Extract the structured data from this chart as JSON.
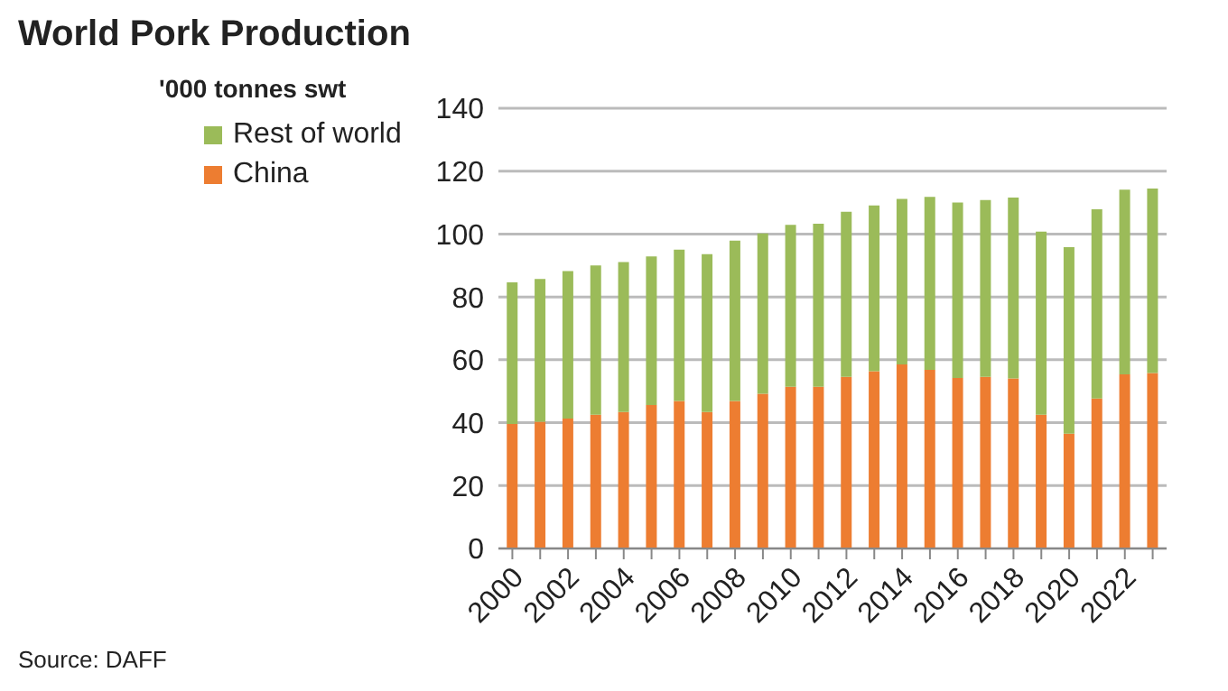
{
  "chart_data": {
    "type": "bar",
    "title": "World Pork Production",
    "ylabel": "'000 tonnes swt",
    "stacked": true,
    "categories": [
      "2000",
      null,
      "2002",
      null,
      "2004",
      null,
      "2006",
      null,
      "2008",
      null,
      "2010",
      null,
      "2012",
      null,
      "2014",
      null,
      "2016",
      null,
      "2018",
      null,
      "2020",
      null,
      "2022",
      null
    ],
    "series": [
      {
        "name": "China",
        "color": "#ed7d31",
        "values": [
          39.6,
          40.3,
          41.3,
          42.5,
          43.4,
          45.6,
          46.9,
          43.4,
          46.9,
          49.2,
          51.4,
          51.4,
          54.6,
          56.4,
          58.5,
          56.8,
          54.2,
          54.6,
          54.1,
          42.5,
          36.5,
          47.7,
          55.4,
          55.8
        ]
      },
      {
        "name": "Rest of world",
        "color": "#9bbb59",
        "values": [
          45.0,
          45.4,
          46.9,
          47.5,
          47.7,
          47.3,
          48.1,
          50.2,
          51.0,
          51.0,
          51.5,
          51.9,
          52.5,
          52.7,
          52.7,
          55.0,
          55.8,
          56.2,
          57.5,
          58.3,
          59.3,
          60.2,
          58.7,
          58.7
        ]
      }
    ],
    "ylim": [
      0,
      140
    ],
    "yticks": [
      0,
      20,
      40,
      60,
      80,
      100,
      120,
      140
    ],
    "grid": "y",
    "legend": "top left",
    "annotations": [
      "Source: DAFF"
    ]
  }
}
